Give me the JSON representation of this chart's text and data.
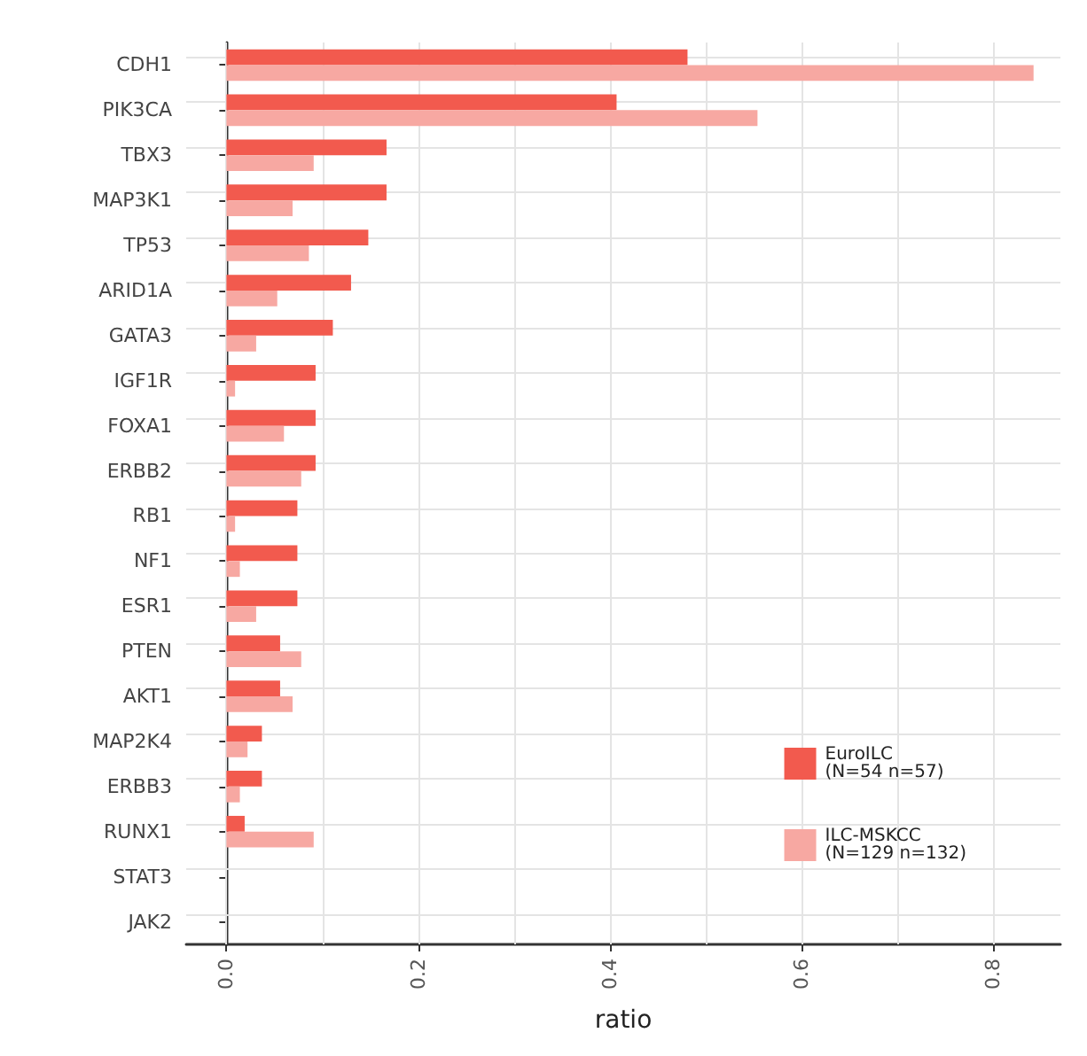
{
  "chart_data": {
    "type": "bar",
    "orientation": "horizontal",
    "xlabel": "ratio",
    "categories": [
      "CDH1",
      "PIK3CA",
      "TBX3",
      "MAP3K1",
      "TP53",
      "ARID1A",
      "GATA3",
      "IGF1R",
      "FOXA1",
      "ERBB2",
      "RB1",
      "NF1",
      "ESR1",
      "PTEN",
      "AKT1",
      "MAP2K4",
      "ERBB3",
      "RUNX1",
      "STAT3",
      "JAK2"
    ],
    "series": [
      {
        "name": "EuroILC\n(N=54 n=57)",
        "color": "#f25a4e",
        "values": [
          0.481,
          0.407,
          0.167,
          0.167,
          0.148,
          0.13,
          0.111,
          0.093,
          0.093,
          0.093,
          0.074,
          0.074,
          0.074,
          0.056,
          0.056,
          0.037,
          0.037,
          0.019,
          0,
          0
        ]
      },
      {
        "name": "ILC-MSKCC\n(N=129 n=132)",
        "color": "#f7a8a2",
        "values": [
          0.842,
          0.554,
          0.091,
          0.069,
          0.086,
          0.053,
          0.031,
          0.009,
          0.06,
          0.078,
          0.009,
          0.014,
          0.031,
          0.078,
          0.069,
          0.022,
          0.014,
          0.091,
          0,
          0
        ]
      }
    ],
    "xlim": [
      -0.042,
      0.87
    ],
    "xticks": [
      {
        "value": 0,
        "label": "0.0"
      },
      {
        "value": 0.2,
        "label": "0.2"
      },
      {
        "value": 0.4,
        "label": "0.4"
      },
      {
        "value": 0.6,
        "label": "0.6"
      },
      {
        "value": 0.8,
        "label": "0.8"
      }
    ],
    "grid": true,
    "legend": "bottom right"
  }
}
